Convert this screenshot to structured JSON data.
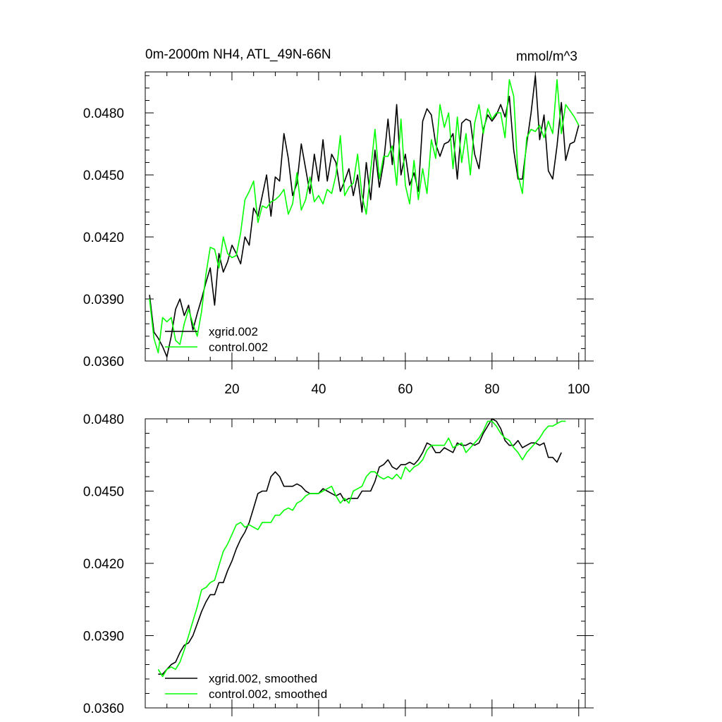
{
  "chart_data": [
    {
      "type": "line",
      "title": "0m-2000m NH4, ATL_49N-66N",
      "units": "mmol/m^3",
      "xlabel": "",
      "ylabel": "",
      "xlim": [
        0,
        101.5
      ],
      "ylim": [
        0.036,
        0.04998
      ],
      "xticks": [
        20,
        40,
        60,
        80,
        100
      ],
      "xtick_labels": [
        "20",
        "40",
        "60",
        "80",
        "100"
      ],
      "yticks": [
        0.036,
        0.039,
        0.042,
        0.045,
        0.048
      ],
      "ytick_labels": [
        "0.0360",
        "0.0390",
        "0.0420",
        "0.0450",
        "0.0480"
      ],
      "legend": {
        "position": "bottom-left",
        "entries": [
          "xgrid.002",
          "control.002"
        ]
      },
      "series": [
        {
          "name": "xgrid.002",
          "color": "#000000",
          "x_start": 1,
          "values": [
            0.0392,
            0.0374,
            0.0371,
            0.0367,
            0.0362,
            0.0372,
            0.0385,
            0.039,
            0.0382,
            0.0387,
            0.0375,
            0.0383,
            0.039,
            0.0398,
            0.0405,
            0.0387,
            0.0412,
            0.0403,
            0.0408,
            0.0416,
            0.0412,
            0.0407,
            0.042,
            0.0416,
            0.0434,
            0.043,
            0.044,
            0.045,
            0.043,
            0.0449,
            0.0447,
            0.047,
            0.0458,
            0.044,
            0.0446,
            0.0465,
            0.0453,
            0.0441,
            0.046,
            0.0447,
            0.0467,
            0.0447,
            0.046,
            0.0456,
            0.0442,
            0.0447,
            0.0453,
            0.044,
            0.045,
            0.0432,
            0.0456,
            0.0438,
            0.0462,
            0.0444,
            0.0456,
            0.0477,
            0.0455,
            0.0484,
            0.045,
            0.046,
            0.0445,
            0.0451,
            0.0442,
            0.0476,
            0.0482,
            0.0479,
            0.0465,
            0.0459,
            0.0465,
            0.0466,
            0.047,
            0.0448,
            0.0475,
            0.0477,
            0.0476,
            0.046,
            0.0453,
            0.0472,
            0.0479,
            0.0476,
            0.0479,
            0.0484,
            0.0478,
            0.0488,
            0.0462,
            0.0448,
            0.0448,
            0.0465,
            0.048,
            0.0498,
            0.0467,
            0.0479,
            0.0452,
            0.0448,
            0.0464,
            0.0485,
            0.0457,
            0.0465,
            0.0466,
            0.0474
          ]
        },
        {
          "name": "control.002",
          "color": "#00ff00",
          "x_start": 1,
          "values": [
            0.039,
            0.0371,
            0.0364,
            0.0381,
            0.0379,
            0.0381,
            0.037,
            0.0368,
            0.0378,
            0.0385,
            0.0378,
            0.0372,
            0.0384,
            0.0402,
            0.0415,
            0.0414,
            0.0405,
            0.042,
            0.0412,
            0.041,
            0.0411,
            0.0422,
            0.0438,
            0.0442,
            0.0447,
            0.0427,
            0.0435,
            0.0434,
            0.0437,
            0.0438,
            0.044,
            0.0443,
            0.0431,
            0.0436,
            0.0451,
            0.0433,
            0.0438,
            0.0449,
            0.0437,
            0.044,
            0.0436,
            0.0443,
            0.0441,
            0.045,
            0.0469,
            0.044,
            0.0444,
            0.0446,
            0.046,
            0.044,
            0.0431,
            0.0452,
            0.0472,
            0.0448,
            0.0459,
            0.0459,
            0.0464,
            0.0445,
            0.0477,
            0.0445,
            0.0436,
            0.0457,
            0.0438,
            0.0453,
            0.0441,
            0.0467,
            0.0458,
            0.0484,
            0.0473,
            0.048,
            0.0453,
            0.0478,
            0.0456,
            0.047,
            0.045,
            0.0475,
            0.0484,
            0.047,
            0.0482,
            0.0477,
            0.048,
            0.048,
            0.0468,
            0.0496,
            0.0488,
            0.045,
            0.0441,
            0.0468,
            0.0472,
            0.0471,
            0.0474,
            0.0468,
            0.0476,
            0.047,
            0.0496,
            0.047,
            0.0484,
            0.0481,
            0.0478,
            0.0474
          ]
        }
      ]
    },
    {
      "type": "line",
      "title": "",
      "xlabel": "",
      "ylabel": "",
      "xlim": [
        0,
        101.5
      ],
      "ylim": [
        0.036,
        0.048
      ],
      "xticks": [
        20,
        40,
        60,
        80,
        100
      ],
      "xtick_labels": [],
      "yticks": [
        0.036,
        0.039,
        0.042,
        0.045,
        0.048
      ],
      "ytick_labels": [
        "0.0360",
        "0.0390",
        "0.0420",
        "0.0450",
        "0.0480"
      ],
      "legend": {
        "position": "bottom-left",
        "entries": [
          "xgrid.002, smoothed",
          "control.002, smoothed"
        ]
      },
      "series": [
        {
          "name": "xgrid.002, smoothed",
          "color": "#000000",
          "x_start": 3,
          "values": [
            0.0374,
            0.0374,
            0.0376,
            0.0378,
            0.0379,
            0.0383,
            0.0386,
            0.0387,
            0.039,
            0.0395,
            0.04,
            0.0404,
            0.0407,
            0.0407,
            0.0412,
            0.0412,
            0.0417,
            0.0421,
            0.0426,
            0.043,
            0.0433,
            0.0437,
            0.0443,
            0.0449,
            0.045,
            0.045,
            0.0456,
            0.0458,
            0.0456,
            0.0452,
            0.0452,
            0.0452,
            0.0453,
            0.0452,
            0.045,
            0.0449,
            0.0449,
            0.0449,
            0.0451,
            0.045,
            0.0449,
            0.0448,
            0.0449,
            0.0446,
            0.0447,
            0.0447,
            0.0447,
            0.045,
            0.045,
            0.045,
            0.0454,
            0.046,
            0.0461,
            0.0463,
            0.046,
            0.0459,
            0.0461,
            0.0461,
            0.0462,
            0.0461,
            0.0463,
            0.0466,
            0.047,
            0.0469,
            0.0466,
            0.0466,
            0.0468,
            0.0467,
            0.0466,
            0.047,
            0.0469,
            0.0469,
            0.047,
            0.0469,
            0.047,
            0.0474,
            0.0477,
            0.048,
            0.0479,
            0.0476,
            0.0471,
            0.0469,
            0.0469,
            0.0471,
            0.0468,
            0.0469,
            0.047,
            0.047,
            0.0469,
            0.047,
            0.0464,
            0.0464,
            0.0462,
            0.0466
          ]
        },
        {
          "name": "control.002, smoothed",
          "color": "#00ff00",
          "x_start": 3,
          "values": [
            0.0376,
            0.0373,
            0.0376,
            0.0377,
            0.0376,
            0.0379,
            0.0384,
            0.039,
            0.0396,
            0.0402,
            0.0409,
            0.041,
            0.0412,
            0.0413,
            0.0419,
            0.0425,
            0.0428,
            0.0432,
            0.0436,
            0.0437,
            0.0435,
            0.0436,
            0.0435,
            0.0434,
            0.0437,
            0.0437,
            0.0437,
            0.044,
            0.044,
            0.0442,
            0.0443,
            0.0442,
            0.0445,
            0.0446,
            0.0448,
            0.0449,
            0.0449,
            0.0449,
            0.045,
            0.0451,
            0.0452,
            0.0448,
            0.0445,
            0.0447,
            0.0445,
            0.045,
            0.0451,
            0.0452,
            0.0456,
            0.0458,
            0.0458,
            0.0456,
            0.0455,
            0.0456,
            0.0455,
            0.0457,
            0.0455,
            0.046,
            0.0458,
            0.046,
            0.0461,
            0.0463,
            0.0467,
            0.0469,
            0.0469,
            0.0469,
            0.0469,
            0.0472,
            0.0468,
            0.0469,
            0.047,
            0.0466,
            0.0468,
            0.047,
            0.0472,
            0.0475,
            0.0479,
            0.0479,
            0.0477,
            0.0474,
            0.0472,
            0.0471,
            0.0468,
            0.0466,
            0.0463,
            0.0466,
            0.0468,
            0.047,
            0.0472,
            0.0475,
            0.0477,
            0.0477,
            0.0478,
            0.0479,
            0.0479
          ]
        }
      ]
    }
  ]
}
